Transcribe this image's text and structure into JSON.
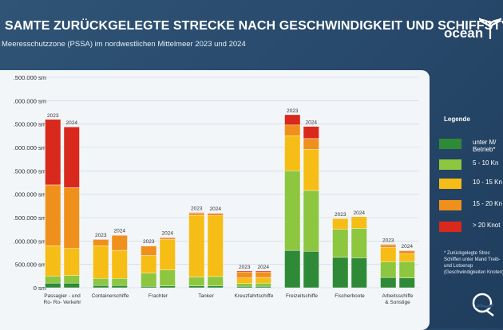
{
  "title": "SAMTE ZURÜCKGELEGTE STRECKE NACH GESCHWINDIGKEIT UND SCHIFFSTYP",
  "subtitle": "Meeresschutzzone (PSSA) im nordwestlichen Mittelmeer 2023 und 2024",
  "logo_text": "ocean",
  "legend": {
    "title": "Legende",
    "items": [
      {
        "label": "unter M/ Betrieb*",
        "color": "#2f8a37"
      },
      {
        "label": "5 - 10 Kn",
        "color": "#8dc63f"
      },
      {
        "label": "10 - 15 Kn",
        "color": "#f6bd16"
      },
      {
        "label": "15 - 20 Kn",
        "color": "#f0901c"
      },
      {
        "label": "> 20 Knot",
        "color": "#d9291c"
      }
    ],
    "footnote": "* Zurückgelegte Strec Schiffen unter Mand Treib- und Lotsenop (Geschwindigkeiten Knoten)"
  },
  "chart_data": {
    "type": "bar",
    "stacked": true,
    "year_labels": [
      "2023",
      "2024"
    ],
    "categories": [
      "Passagier - und Ro- Ro- Verkehr",
      "Containerschiffe",
      "Frachter",
      "Tanker",
      "Kreuzfahrtschiffe",
      "Freizeitschiffe",
      "Fischerboote",
      "Arbeitsschiffe & Sonstige"
    ],
    "category_lines": [
      [
        "Passagier - und",
        "Ro- Ro- Verkehr"
      ],
      [
        "Containerschiffe"
      ],
      [
        "Frachter"
      ],
      [
        "Tanker"
      ],
      [
        "Kreuzfahrtschiffe"
      ],
      [
        "Freizeitschiffe"
      ],
      [
        "Fischerboote"
      ],
      [
        "Arbeitsschiffe",
        "& Sonstige"
      ]
    ],
    "yticks": [
      "0 sm",
      "500.000 sm",
      ".000.000 sm",
      ".500.000 sm",
      ".000.000 sm",
      ".500.000 sm",
      ".000.000 sm",
      ".500.000 sm",
      ".000.000 sm",
      ".500.000 sm"
    ],
    "ylim": [
      0,
      4500000
    ],
    "series": [
      {
        "name": "unter M/ Betrieb*",
        "color": "#2f8a37",
        "values": [
          [
            100000,
            100000
          ],
          [
            50000,
            50000
          ],
          [
            30000,
            40000
          ],
          [
            40000,
            40000
          ],
          [
            30000,
            30000
          ],
          [
            800000,
            780000
          ],
          [
            650000,
            640000
          ],
          [
            220000,
            210000
          ]
        ]
      },
      {
        "name": "5 - 10 Kn",
        "color": "#8dc63f",
        "values": [
          [
            150000,
            160000
          ],
          [
            150000,
            150000
          ],
          [
            280000,
            340000
          ],
          [
            190000,
            200000
          ],
          [
            60000,
            70000
          ],
          [
            1700000,
            1300000
          ],
          [
            600000,
            630000
          ],
          [
            330000,
            350000
          ]
        ]
      },
      {
        "name": "10 - 15 Kn",
        "color": "#f6bd16",
        "values": [
          [
            650000,
            580000
          ],
          [
            700000,
            600000
          ],
          [
            380000,
            650000
          ],
          [
            1320000,
            1300000
          ],
          [
            120000,
            120000
          ],
          [
            750000,
            880000
          ],
          [
            230000,
            250000
          ],
          [
            310000,
            170000
          ]
        ]
      },
      {
        "name": "15 - 20 Kn",
        "color": "#f0901c",
        "values": [
          [
            1300000,
            1300000
          ],
          [
            130000,
            320000
          ],
          [
            200000,
            40000
          ],
          [
            50000,
            50000
          ],
          [
            130000,
            120000
          ],
          [
            230000,
            230000
          ],
          [
            0,
            0
          ],
          [
            60000,
            60000
          ]
        ]
      },
      {
        "name": "> 20 Knot",
        "color": "#d9291c",
        "values": [
          [
            1400000,
            1300000
          ],
          [
            10000,
            10000
          ],
          [
            10000,
            10000
          ],
          [
            10000,
            10000
          ],
          [
            20000,
            20000
          ],
          [
            220000,
            260000
          ],
          [
            0,
            0
          ],
          [
            10000,
            10000
          ]
        ]
      }
    ]
  }
}
